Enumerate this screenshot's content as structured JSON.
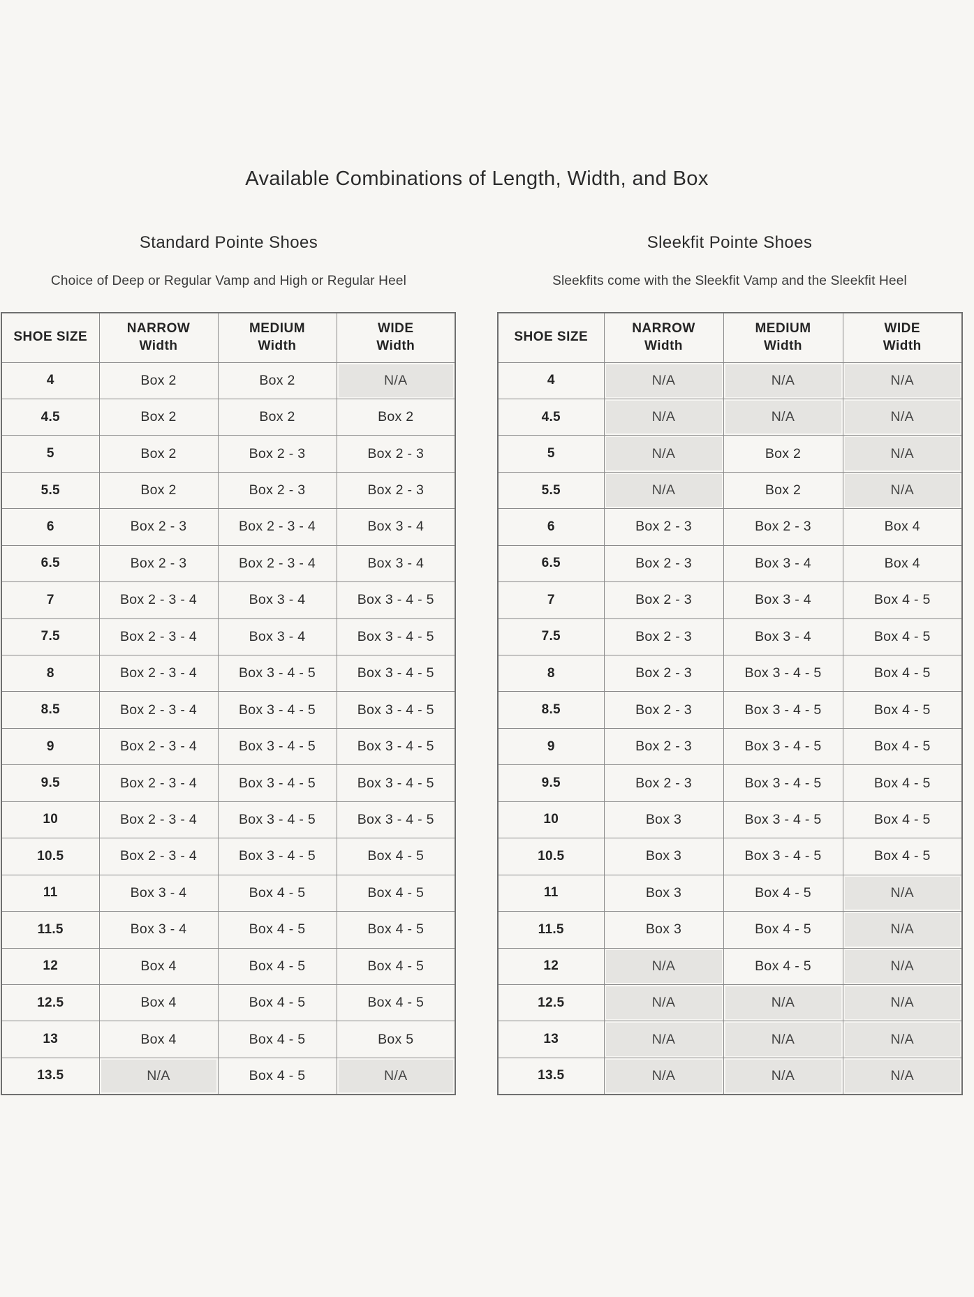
{
  "page": {
    "title": "Available Combinations of Length, Width, and Box",
    "colors": {
      "background": "#f7f6f3",
      "text": "#2e2e2e",
      "border": "#8a8a8a",
      "na_cell_background": "#e5e4e1"
    }
  },
  "tables": [
    {
      "id": "standard",
      "heading": "Standard Pointe Shoes",
      "subheading": "Choice of Deep or Regular Vamp and High or Regular Heel",
      "size_header": "SHOE SIZE",
      "width_headers": [
        {
          "top": "NARROW",
          "bottom": "Width"
        },
        {
          "top": "MEDIUM",
          "bottom": "Width"
        },
        {
          "top": "WIDE",
          "bottom": "Width"
        }
      ],
      "rows": [
        {
          "size": "4",
          "cells": [
            {
              "text": "Box 2",
              "na": false
            },
            {
              "text": "Box 2",
              "na": false
            },
            {
              "text": "N/A",
              "na": true
            }
          ]
        },
        {
          "size": "4.5",
          "cells": [
            {
              "text": "Box 2",
              "na": false
            },
            {
              "text": "Box 2",
              "na": false
            },
            {
              "text": "Box 2",
              "na": false
            }
          ]
        },
        {
          "size": "5",
          "cells": [
            {
              "text": "Box 2",
              "na": false
            },
            {
              "text": "Box 2 - 3",
              "na": false
            },
            {
              "text": "Box 2 - 3",
              "na": false
            }
          ]
        },
        {
          "size": "5.5",
          "cells": [
            {
              "text": "Box 2",
              "na": false
            },
            {
              "text": "Box 2 - 3",
              "na": false
            },
            {
              "text": "Box 2 - 3",
              "na": false
            }
          ]
        },
        {
          "size": "6",
          "cells": [
            {
              "text": "Box 2 - 3",
              "na": false
            },
            {
              "text": "Box 2 - 3 - 4",
              "na": false
            },
            {
              "text": "Box 3 - 4",
              "na": false
            }
          ]
        },
        {
          "size": "6.5",
          "cells": [
            {
              "text": "Box 2 - 3",
              "na": false
            },
            {
              "text": "Box 2 - 3 - 4",
              "na": false
            },
            {
              "text": "Box 3 - 4",
              "na": false
            }
          ]
        },
        {
          "size": "7",
          "cells": [
            {
              "text": "Box 2 - 3 - 4",
              "na": false
            },
            {
              "text": "Box 3 - 4",
              "na": false
            },
            {
              "text": "Box 3 - 4 - 5",
              "na": false
            }
          ]
        },
        {
          "size": "7.5",
          "cells": [
            {
              "text": "Box 2 - 3 - 4",
              "na": false
            },
            {
              "text": "Box 3 - 4",
              "na": false
            },
            {
              "text": "Box 3 - 4 - 5",
              "na": false
            }
          ]
        },
        {
          "size": "8",
          "cells": [
            {
              "text": "Box 2 - 3 - 4",
              "na": false
            },
            {
              "text": "Box 3 - 4 - 5",
              "na": false
            },
            {
              "text": "Box 3 - 4 - 5",
              "na": false
            }
          ]
        },
        {
          "size": "8.5",
          "cells": [
            {
              "text": "Box 2 - 3 - 4",
              "na": false
            },
            {
              "text": "Box 3 - 4 - 5",
              "na": false
            },
            {
              "text": "Box 3 - 4 - 5",
              "na": false
            }
          ]
        },
        {
          "size": "9",
          "cells": [
            {
              "text": "Box 2 - 3 - 4",
              "na": false
            },
            {
              "text": "Box 3 - 4 - 5",
              "na": false
            },
            {
              "text": "Box 3 - 4 - 5",
              "na": false
            }
          ]
        },
        {
          "size": "9.5",
          "cells": [
            {
              "text": "Box 2 - 3 - 4",
              "na": false
            },
            {
              "text": "Box 3 - 4 - 5",
              "na": false
            },
            {
              "text": "Box 3 - 4 - 5",
              "na": false
            }
          ]
        },
        {
          "size": "10",
          "cells": [
            {
              "text": "Box 2 - 3 - 4",
              "na": false
            },
            {
              "text": "Box 3 - 4 - 5",
              "na": false
            },
            {
              "text": "Box 3 - 4 - 5",
              "na": false
            }
          ]
        },
        {
          "size": "10.5",
          "cells": [
            {
              "text": "Box 2 - 3 - 4",
              "na": false
            },
            {
              "text": "Box 3 - 4 - 5",
              "na": false
            },
            {
              "text": "Box 4 - 5",
              "na": false
            }
          ]
        },
        {
          "size": "11",
          "cells": [
            {
              "text": "Box 3 - 4",
              "na": false
            },
            {
              "text": "Box 4 - 5",
              "na": false
            },
            {
              "text": "Box 4 - 5",
              "na": false
            }
          ]
        },
        {
          "size": "11.5",
          "cells": [
            {
              "text": "Box 3 - 4",
              "na": false
            },
            {
              "text": "Box 4 - 5",
              "na": false
            },
            {
              "text": "Box 4 - 5",
              "na": false
            }
          ]
        },
        {
          "size": "12",
          "cells": [
            {
              "text": "Box 4",
              "na": false
            },
            {
              "text": "Box 4 - 5",
              "na": false
            },
            {
              "text": "Box 4 - 5",
              "na": false
            }
          ]
        },
        {
          "size": "12.5",
          "cells": [
            {
              "text": "Box 4",
              "na": false
            },
            {
              "text": "Box 4 - 5",
              "na": false
            },
            {
              "text": "Box 4 - 5",
              "na": false
            }
          ]
        },
        {
          "size": "13",
          "cells": [
            {
              "text": "Box 4",
              "na": false
            },
            {
              "text": "Box 4 - 5",
              "na": false
            },
            {
              "text": "Box 5",
              "na": false
            }
          ]
        },
        {
          "size": "13.5",
          "cells": [
            {
              "text": "N/A",
              "na": true
            },
            {
              "text": "Box 4 - 5",
              "na": false
            },
            {
              "text": "N/A",
              "na": true
            }
          ]
        }
      ]
    },
    {
      "id": "sleekfit",
      "heading": "Sleekfit Pointe Shoes",
      "subheading": "Sleekfits come with the Sleekfit Vamp and the Sleekfit Heel",
      "size_header": "SHOE SIZE",
      "width_headers": [
        {
          "top": "NARROW",
          "bottom": "Width"
        },
        {
          "top": "MEDIUM",
          "bottom": "Width"
        },
        {
          "top": "WIDE",
          "bottom": "Width"
        }
      ],
      "rows": [
        {
          "size": "4",
          "cells": [
            {
              "text": "N/A",
              "na": true
            },
            {
              "text": "N/A",
              "na": true
            },
            {
              "text": "N/A",
              "na": true
            }
          ]
        },
        {
          "size": "4.5",
          "cells": [
            {
              "text": "N/A",
              "na": true
            },
            {
              "text": "N/A",
              "na": true
            },
            {
              "text": "N/A",
              "na": true
            }
          ]
        },
        {
          "size": "5",
          "cells": [
            {
              "text": "N/A",
              "na": true
            },
            {
              "text": "Box 2",
              "na": false
            },
            {
              "text": "N/A",
              "na": true
            }
          ]
        },
        {
          "size": "5.5",
          "cells": [
            {
              "text": "N/A",
              "na": true
            },
            {
              "text": "Box 2",
              "na": false
            },
            {
              "text": "N/A",
              "na": true
            }
          ]
        },
        {
          "size": "6",
          "cells": [
            {
              "text": "Box 2 - 3",
              "na": false
            },
            {
              "text": "Box 2 - 3",
              "na": false
            },
            {
              "text": "Box 4",
              "na": false
            }
          ]
        },
        {
          "size": "6.5",
          "cells": [
            {
              "text": "Box 2 - 3",
              "na": false
            },
            {
              "text": "Box 3 - 4",
              "na": false
            },
            {
              "text": "Box 4",
              "na": false
            }
          ]
        },
        {
          "size": "7",
          "cells": [
            {
              "text": "Box 2 - 3",
              "na": false
            },
            {
              "text": "Box 3 - 4",
              "na": false
            },
            {
              "text": "Box 4 - 5",
              "na": false
            }
          ]
        },
        {
          "size": "7.5",
          "cells": [
            {
              "text": "Box 2 - 3",
              "na": false
            },
            {
              "text": "Box 3 - 4",
              "na": false
            },
            {
              "text": "Box 4 - 5",
              "na": false
            }
          ]
        },
        {
          "size": "8",
          "cells": [
            {
              "text": "Box 2 - 3",
              "na": false
            },
            {
              "text": "Box 3 - 4 - 5",
              "na": false
            },
            {
              "text": "Box 4 - 5",
              "na": false
            }
          ]
        },
        {
          "size": "8.5",
          "cells": [
            {
              "text": "Box 2 - 3",
              "na": false
            },
            {
              "text": "Box 3 - 4 - 5",
              "na": false
            },
            {
              "text": "Box 4 - 5",
              "na": false
            }
          ]
        },
        {
          "size": "9",
          "cells": [
            {
              "text": "Box 2 - 3",
              "na": false
            },
            {
              "text": "Box 3 - 4 - 5",
              "na": false
            },
            {
              "text": "Box 4 - 5",
              "na": false
            }
          ]
        },
        {
          "size": "9.5",
          "cells": [
            {
              "text": "Box 2 - 3",
              "na": false
            },
            {
              "text": "Box 3 - 4 - 5",
              "na": false
            },
            {
              "text": "Box 4 - 5",
              "na": false
            }
          ]
        },
        {
          "size": "10",
          "cells": [
            {
              "text": "Box 3",
              "na": false
            },
            {
              "text": "Box 3 - 4 - 5",
              "na": false
            },
            {
              "text": "Box 4 - 5",
              "na": false
            }
          ]
        },
        {
          "size": "10.5",
          "cells": [
            {
              "text": "Box 3",
              "na": false
            },
            {
              "text": "Box 3 - 4 - 5",
              "na": false
            },
            {
              "text": "Box 4 - 5",
              "na": false
            }
          ]
        },
        {
          "size": "11",
          "cells": [
            {
              "text": "Box 3",
              "na": false
            },
            {
              "text": "Box 4 - 5",
              "na": false
            },
            {
              "text": "N/A",
              "na": true
            }
          ]
        },
        {
          "size": "11.5",
          "cells": [
            {
              "text": "Box 3",
              "na": false
            },
            {
              "text": "Box 4 - 5",
              "na": false
            },
            {
              "text": "N/A",
              "na": true
            }
          ]
        },
        {
          "size": "12",
          "cells": [
            {
              "text": "N/A",
              "na": true
            },
            {
              "text": "Box 4 - 5",
              "na": false
            },
            {
              "text": "N/A",
              "na": true
            }
          ]
        },
        {
          "size": "12.5",
          "cells": [
            {
              "text": "N/A",
              "na": true
            },
            {
              "text": "N/A",
              "na": true
            },
            {
              "text": "N/A",
              "na": true
            }
          ]
        },
        {
          "size": "13",
          "cells": [
            {
              "text": "N/A",
              "na": true
            },
            {
              "text": "N/A",
              "na": true
            },
            {
              "text": "N/A",
              "na": true
            }
          ]
        },
        {
          "size": "13.5",
          "cells": [
            {
              "text": "N/A",
              "na": true
            },
            {
              "text": "N/A",
              "na": true
            },
            {
              "text": "N/A",
              "na": true
            }
          ]
        }
      ]
    }
  ]
}
